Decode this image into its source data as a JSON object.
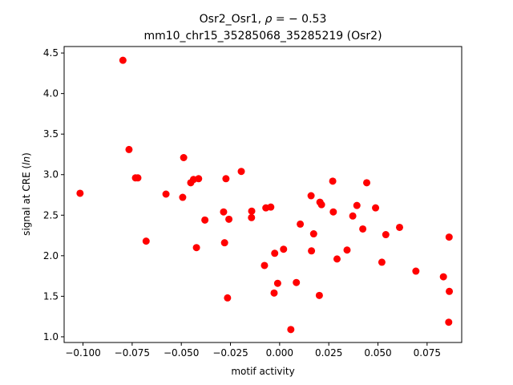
{
  "chart_data": {
    "type": "scatter",
    "title_line1": "Osr2_Osr1, ρ = − 0.53",
    "title_line2": "mm10_chr15_35285068_35285219 (Osr2)",
    "xlabel": "motif activity",
    "ylabel": "signal at CRE (ln)",
    "xlim": [
      -0.1096,
      0.0926
    ],
    "ylim": [
      0.93,
      4.58
    ],
    "xticks": [
      -0.1,
      -0.075,
      -0.05,
      -0.025,
      0.0,
      0.025,
      0.05,
      0.075
    ],
    "xtick_labels": [
      "−0.100",
      "−0.075",
      "−0.050",
      "−0.025",
      "0.000",
      "0.025",
      "0.050",
      "0.075"
    ],
    "yticks": [
      1.0,
      1.5,
      2.0,
      2.5,
      3.0,
      3.5,
      4.0,
      4.5
    ],
    "ytick_labels": [
      "1.0",
      "1.5",
      "2.0",
      "2.5",
      "3.0",
      "3.5",
      "4.0",
      "4.5"
    ],
    "marker_color": "#ff0000",
    "grid": false,
    "points": [
      {
        "x": -0.1015,
        "y": 2.77
      },
      {
        "x": -0.0797,
        "y": 4.41
      },
      {
        "x": -0.0766,
        "y": 3.31
      },
      {
        "x": -0.0733,
        "y": 2.96
      },
      {
        "x": -0.0721,
        "y": 2.96
      },
      {
        "x": -0.0679,
        "y": 2.18
      },
      {
        "x": -0.0578,
        "y": 2.76
      },
      {
        "x": -0.0488,
        "y": 3.21
      },
      {
        "x": -0.0493,
        "y": 2.72
      },
      {
        "x": -0.0452,
        "y": 2.9
      },
      {
        "x": -0.0438,
        "y": 2.94
      },
      {
        "x": -0.0412,
        "y": 2.95
      },
      {
        "x": -0.0423,
        "y": 2.1
      },
      {
        "x": -0.038,
        "y": 2.44
      },
      {
        "x": -0.0285,
        "y": 2.54
      },
      {
        "x": -0.028,
        "y": 2.16
      },
      {
        "x": -0.0273,
        "y": 2.95
      },
      {
        "x": -0.0258,
        "y": 2.45
      },
      {
        "x": -0.0265,
        "y": 1.48
      },
      {
        "x": -0.0195,
        "y": 3.04
      },
      {
        "x": -0.0142,
        "y": 2.55
      },
      {
        "x": -0.0143,
        "y": 2.47
      },
      {
        "x": -0.007,
        "y": 2.59
      },
      {
        "x": -0.0045,
        "y": 2.6
      },
      {
        "x": -0.0077,
        "y": 1.88
      },
      {
        "x": -0.0025,
        "y": 2.03
      },
      {
        "x": -0.0028,
        "y": 1.54
      },
      {
        "x": -0.001,
        "y": 1.66
      },
      {
        "x": 0.002,
        "y": 2.08
      },
      {
        "x": 0.0057,
        "y": 1.09
      },
      {
        "x": 0.0085,
        "y": 1.67
      },
      {
        "x": 0.0105,
        "y": 2.39
      },
      {
        "x": 0.016,
        "y": 2.74
      },
      {
        "x": 0.0173,
        "y": 2.27
      },
      {
        "x": 0.0162,
        "y": 2.06
      },
      {
        "x": 0.0205,
        "y": 2.66
      },
      {
        "x": 0.0213,
        "y": 2.63
      },
      {
        "x": 0.0202,
        "y": 1.51
      },
      {
        "x": 0.027,
        "y": 2.92
      },
      {
        "x": 0.0273,
        "y": 2.54
      },
      {
        "x": 0.0292,
        "y": 1.96
      },
      {
        "x": 0.0343,
        "y": 2.07
      },
      {
        "x": 0.0372,
        "y": 2.49
      },
      {
        "x": 0.0393,
        "y": 2.62
      },
      {
        "x": 0.0423,
        "y": 2.33
      },
      {
        "x": 0.0443,
        "y": 2.9
      },
      {
        "x": 0.0488,
        "y": 2.59
      },
      {
        "x": 0.052,
        "y": 1.92
      },
      {
        "x": 0.054,
        "y": 2.26
      },
      {
        "x": 0.061,
        "y": 2.35
      },
      {
        "x": 0.0693,
        "y": 1.81
      },
      {
        "x": 0.0833,
        "y": 1.74
      },
      {
        "x": 0.0862,
        "y": 2.23
      },
      {
        "x": 0.0863,
        "y": 1.56
      },
      {
        "x": 0.086,
        "y": 1.18
      }
    ]
  }
}
